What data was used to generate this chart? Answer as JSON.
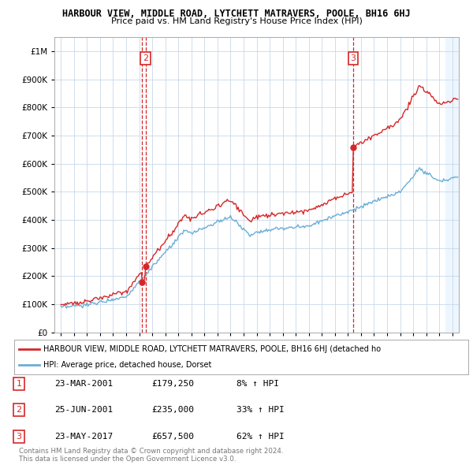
{
  "title": "HARBOUR VIEW, MIDDLE ROAD, LYTCHETT MATRAVERS, POOLE, BH16 6HJ",
  "subtitle": "Price paid vs. HM Land Registry's House Price Index (HPI)",
  "hpi_label": "HPI: Average price, detached house, Dorset",
  "property_label": "HARBOUR VIEW, MIDDLE ROAD, LYTCHETT MATRAVERS, POOLE, BH16 6HJ (detached ho",
  "transactions": [
    {
      "num": 1,
      "date": "23-MAR-2001",
      "price": 179250,
      "pct": "8%",
      "dir": "↑"
    },
    {
      "num": 2,
      "date": "25-JUN-2001",
      "price": 235000,
      "pct": "33%",
      "dir": "↑"
    },
    {
      "num": 3,
      "date": "23-MAY-2017",
      "price": 657500,
      "pct": "62%",
      "dir": "↑"
    }
  ],
  "transaction_years": [
    2001.22,
    2001.48,
    2017.39
  ],
  "ylim": [
    0,
    1050000
  ],
  "yticks": [
    0,
    100000,
    200000,
    300000,
    400000,
    500000,
    600000,
    700000,
    800000,
    900000,
    1000000
  ],
  "xlim_start": 1994.5,
  "xlim_end": 2025.5,
  "background_color": "#ffffff",
  "grid_color": "#c8d8e8",
  "hpi_color": "#6baed6",
  "property_color": "#d62728",
  "vline_color": "#d62728",
  "shade_color": "#ddeeff",
  "footer_text": "Contains HM Land Registry data © Crown copyright and database right 2024.\nThis data is licensed under the Open Government Licence v3.0."
}
